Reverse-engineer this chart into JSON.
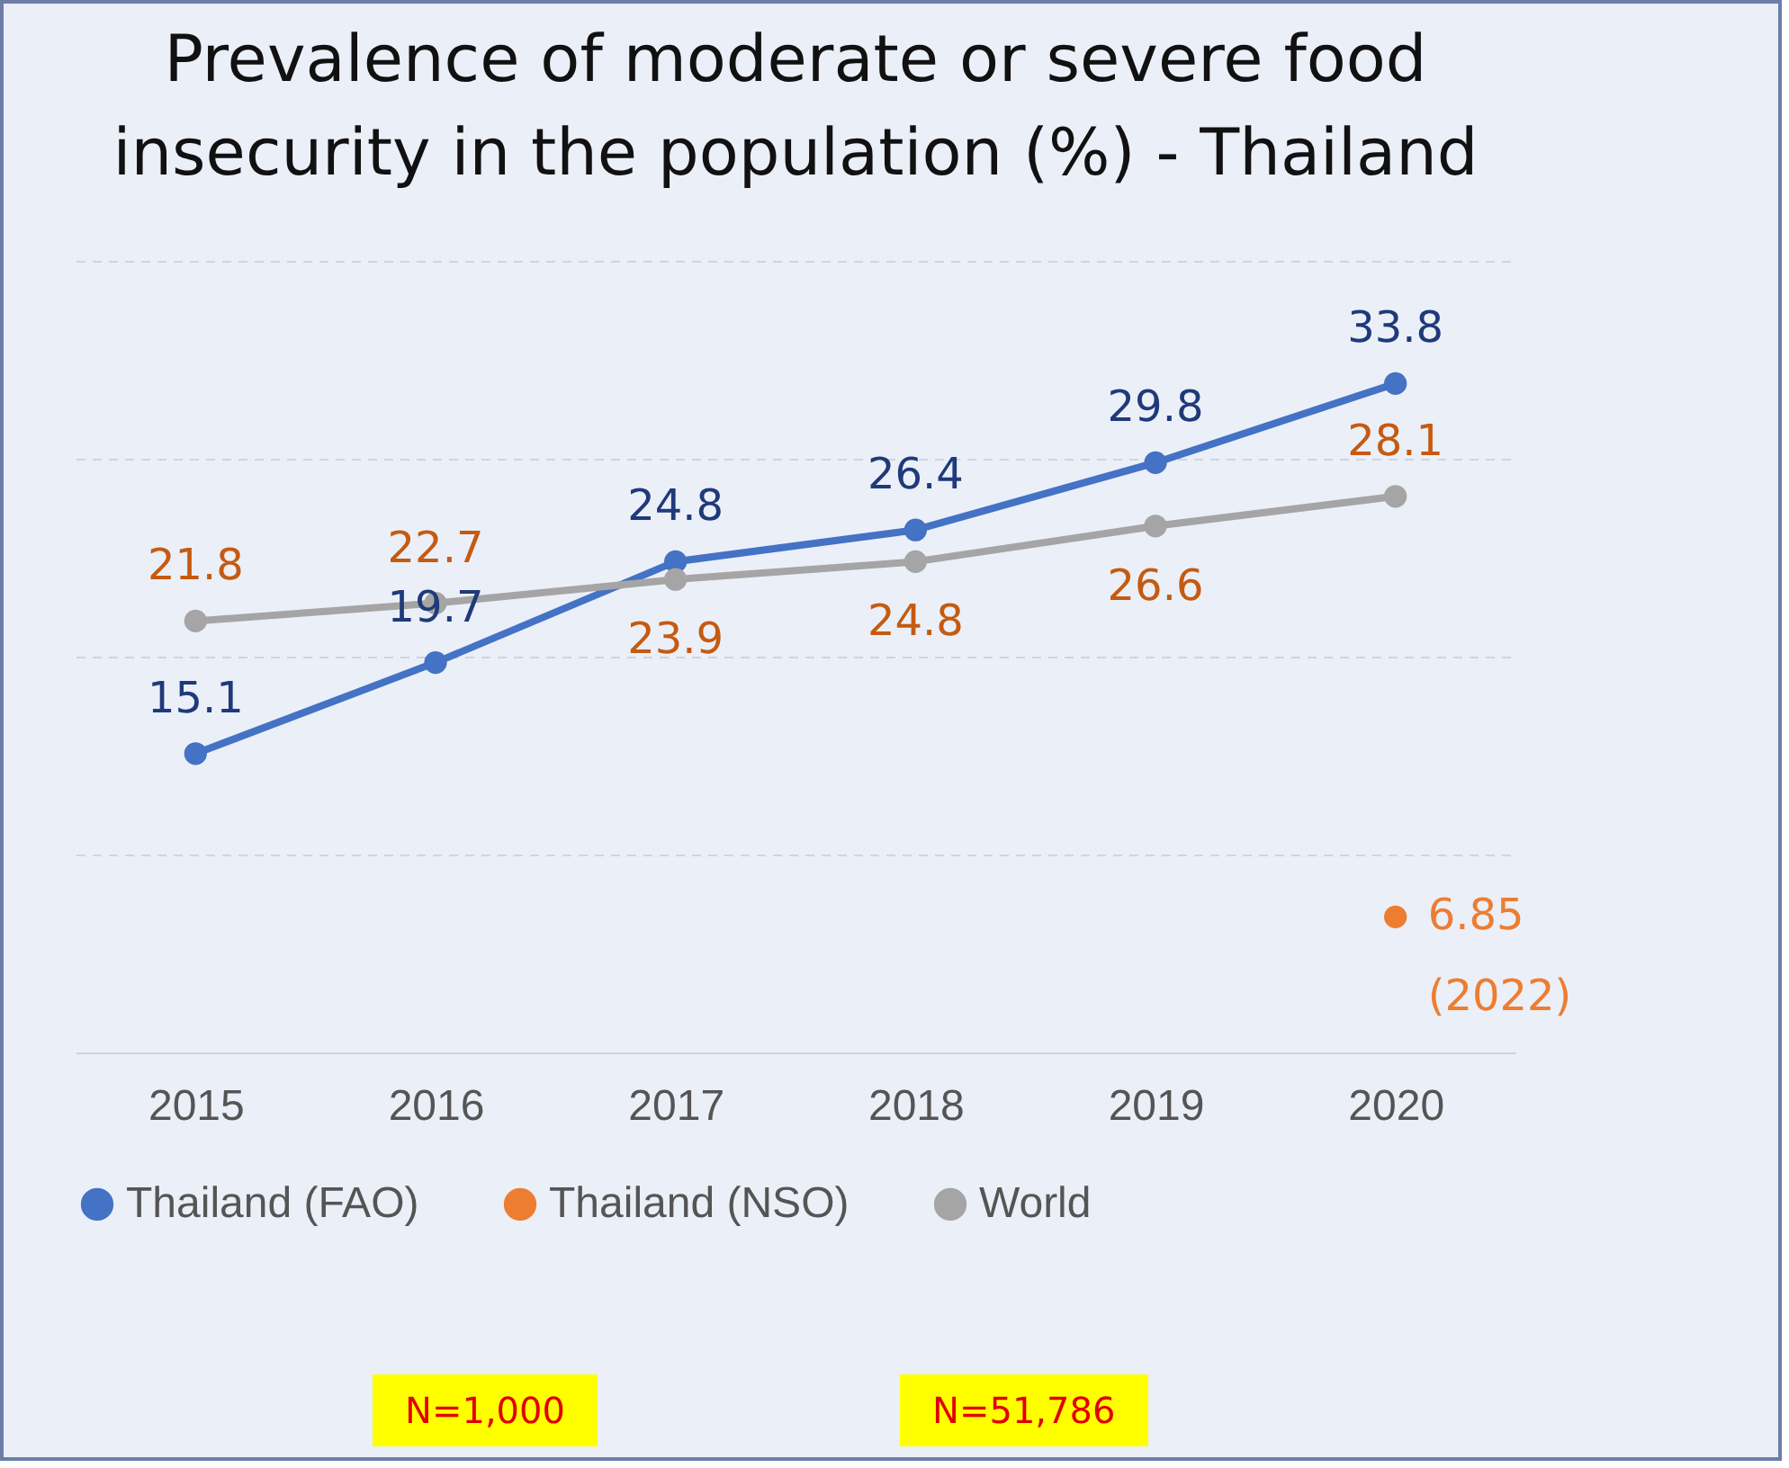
{
  "chart_data": {
    "type": "line",
    "title": "Prevalence of moderate or severe food insecurity in the population (%) - Thailand",
    "categories": [
      "2015",
      "2016",
      "2017",
      "2018",
      "2019",
      "2020"
    ],
    "series": [
      {
        "name": "Thailand (FAO)",
        "color": "#4472c4",
        "values": [
          15.1,
          19.7,
          24.8,
          26.4,
          29.8,
          33.8
        ]
      },
      {
        "name": "Thailand (NSO)",
        "color": "#ed7d31",
        "values": [
          null,
          null,
          null,
          null,
          null,
          6.85
        ]
      },
      {
        "name": "World",
        "color": "#a5a5a5",
        "values": [
          21.8,
          22.7,
          23.9,
          24.8,
          26.6,
          28.1
        ]
      }
    ],
    "ylim": [
      0,
      40
    ],
    "yticks": [
      0,
      10,
      20,
      30,
      40
    ],
    "tick_labels": "x",
    "grid": "y",
    "marker": "circle",
    "legend": "bottom",
    "data_labels": true,
    "annotations": [
      {
        "text": "(2022)",
        "x": "2020",
        "y": 6.85
      },
      "N=1,000",
      "N=51,786"
    ]
  }
}
